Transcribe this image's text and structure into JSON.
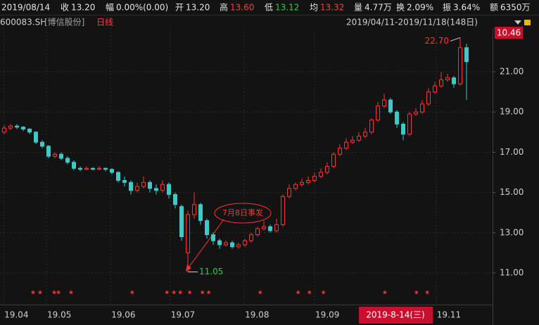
{
  "header": {
    "date": "2019/08/14",
    "fields": [
      {
        "label": "收",
        "value": "13.20",
        "color": "#e6e6e6"
      },
      {
        "label": "幅",
        "value": "0.00%(0.00)",
        "color": "#e6e6e6"
      },
      {
        "label": "开",
        "value": "13.20",
        "color": "#e6e6e6"
      },
      {
        "label": "高",
        "value": "13.60",
        "color": "#ff3b3b"
      },
      {
        "label": "低",
        "value": "13.12",
        "color": "#2ecc40"
      },
      {
        "label": "均",
        "value": "13.32",
        "color": "#ff3b3b"
      },
      {
        "label": "量",
        "value": "4.77万",
        "color": "#e6e6e6"
      },
      {
        "label": "换",
        "value": "2.09%",
        "color": "#e6e6e6"
      },
      {
        "label": "振",
        "value": "3.64%",
        "color": "#e6e6e6"
      },
      {
        "label": "额",
        "value": "6350万",
        "color": "#e6e6e6"
      }
    ]
  },
  "subheader": {
    "code": "600083.SH",
    "name": "[博信股份]",
    "period": "日线",
    "range": "2019/04/11-2019/11/18(148日)"
  },
  "chart_data": {
    "type": "candlestick",
    "x": [
      0,
      1,
      2,
      3,
      4,
      5,
      6,
      7,
      8,
      9,
      10,
      11,
      12,
      13,
      14,
      15,
      16,
      17,
      18,
      19,
      20,
      21,
      22,
      23,
      24,
      25,
      26,
      27,
      28,
      29,
      30,
      31,
      32,
      33,
      34,
      35,
      36,
      37,
      38,
      39,
      40,
      41,
      42,
      43,
      44,
      45,
      46,
      47,
      48,
      49,
      50,
      51,
      52,
      53,
      54,
      55,
      56,
      57,
      58,
      59,
      60,
      61,
      62,
      63,
      64,
      65,
      66,
      67,
      68,
      69,
      70,
      71,
      72,
      73
    ],
    "open": [
      18.0,
      18.2,
      18.3,
      18.25,
      18.15,
      18.0,
      17.5,
      17.3,
      16.8,
      16.9,
      16.7,
      16.5,
      16.2,
      16.15,
      16.2,
      16.15,
      16.2,
      16.15,
      16.0,
      15.6,
      15.5,
      15.1,
      15.3,
      15.5,
      15.2,
      15.1,
      15.4,
      14.9,
      14.3,
      12.0,
      13.9,
      14.4,
      13.6,
      12.9,
      12.6,
      12.4,
      12.5,
      12.3,
      12.4,
      12.6,
      12.9,
      13.2,
      13.3,
      13.1,
      13.4,
      14.8,
      15.2,
      15.4,
      15.5,
      15.6,
      15.8,
      16.0,
      16.3,
      16.9,
      17.2,
      17.5,
      17.6,
      17.8,
      18.0,
      18.6,
      19.3,
      19.6,
      19.0,
      18.4,
      17.9,
      18.9,
      19.0,
      19.4,
      20.0,
      20.3,
      20.6,
      20.7,
      20.4,
      22.2
    ],
    "high": [
      18.35,
      18.4,
      18.4,
      18.3,
      18.2,
      18.05,
      17.6,
      17.35,
      17.0,
      17.0,
      16.8,
      16.6,
      16.3,
      16.3,
      16.25,
      16.3,
      16.25,
      16.2,
      16.05,
      15.8,
      15.6,
      15.5,
      15.8,
      15.6,
      15.4,
      15.6,
      15.5,
      15.0,
      14.4,
      14.1,
      15.0,
      14.5,
      13.7,
      13.0,
      12.7,
      12.6,
      12.6,
      12.5,
      12.7,
      13.0,
      13.3,
      13.6,
      13.4,
      13.7,
      14.9,
      15.4,
      15.5,
      15.7,
      15.8,
      16.0,
      16.2,
      16.5,
      17.0,
      17.4,
      17.7,
      17.8,
      18.0,
      18.2,
      18.7,
      19.5,
      19.9,
      19.7,
      19.1,
      18.5,
      19.0,
      19.2,
      19.6,
      20.2,
      20.5,
      21.0,
      20.9,
      20.8,
      22.7,
      22.4
    ],
    "low": [
      17.9,
      18.1,
      18.15,
      18.05,
      17.9,
      17.4,
      17.2,
      16.7,
      16.7,
      16.6,
      16.4,
      16.1,
      16.05,
      16.1,
      16.1,
      16.1,
      16.05,
      15.9,
      15.5,
      15.3,
      14.9,
      15.0,
      15.2,
      15.0,
      14.9,
      15.0,
      14.7,
      14.2,
      12.6,
      11.05,
      13.7,
      13.4,
      12.7,
      12.4,
      12.2,
      12.3,
      12.2,
      12.2,
      12.3,
      12.5,
      12.8,
      13.1,
      13.0,
      13.0,
      13.3,
      14.7,
      15.1,
      15.3,
      15.4,
      15.5,
      15.7,
      15.9,
      16.2,
      16.8,
      17.1,
      17.4,
      17.5,
      17.7,
      17.9,
      18.5,
      19.2,
      18.9,
      18.2,
      17.6,
      17.8,
      18.8,
      18.9,
      19.3,
      19.9,
      20.2,
      20.5,
      20.2,
      20.3,
      19.6
    ],
    "close": [
      18.2,
      18.3,
      18.25,
      18.15,
      18.0,
      17.5,
      17.3,
      16.8,
      16.9,
      16.7,
      16.5,
      16.2,
      16.15,
      16.2,
      16.15,
      16.2,
      16.15,
      16.0,
      15.6,
      15.5,
      15.1,
      15.3,
      15.5,
      15.2,
      15.1,
      15.4,
      14.9,
      14.4,
      12.8,
      13.9,
      14.4,
      13.6,
      12.9,
      12.6,
      12.4,
      12.5,
      12.3,
      12.4,
      12.6,
      12.9,
      13.2,
      13.3,
      13.1,
      13.4,
      14.8,
      15.2,
      15.4,
      15.5,
      15.6,
      15.8,
      16.0,
      16.3,
      16.9,
      17.2,
      17.5,
      17.6,
      17.8,
      18.0,
      18.6,
      19.3,
      19.6,
      19.0,
      18.4,
      17.9,
      18.9,
      19.0,
      19.4,
      20.0,
      20.3,
      20.6,
      20.7,
      20.4,
      22.2,
      21.5
    ],
    "xlim": [
      -0.667,
      77.11
    ],
    "ylim": [
      9.53,
      23.17
    ],
    "xticks": [
      {
        "value": -0.1,
        "label": "19.04"
      },
      {
        "value": 6.67,
        "label": "19.05"
      },
      {
        "value": 16.8,
        "label": "19.06"
      },
      {
        "value": 26.2,
        "label": "19.07"
      },
      {
        "value": 37.9,
        "label": "19.08"
      },
      {
        "value": 49,
        "label": "19.09"
      },
      {
        "value": 68.2,
        "label": "19.11"
      }
    ],
    "yticks": [
      {
        "value": 11,
        "label": "11.00"
      },
      {
        "value": 13,
        "label": "13.00"
      },
      {
        "value": 15,
        "label": "15.00"
      },
      {
        "value": 17,
        "label": "17.00"
      },
      {
        "value": 19,
        "label": "19.00"
      },
      {
        "value": 21,
        "label": "21.00"
      }
    ],
    "grid": true,
    "up_color": "#ff3232",
    "down_color": "#3fc9c9",
    "badge": "10.46",
    "cursor_date": "2019-8-14(三)",
    "annotation": "7月8日事发",
    "high_label": {
      "value": 22.7,
      "label": "22.70"
    },
    "low_label": 11.05,
    "event_symbol": "★",
    "event_x": [
      4.56,
      5.67,
      7.89,
      8.56,
      10.56,
      20.2,
      25.7,
      26.8,
      27.8,
      29.3,
      31.3,
      32.3,
      40.4,
      46.4,
      48.2,
      50.4,
      60.1,
      65.1,
      66.8
    ]
  }
}
